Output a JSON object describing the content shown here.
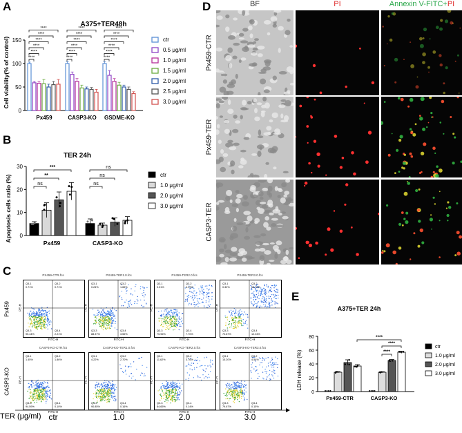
{
  "panel_a": {
    "letter": "A",
    "title": "A375+TER48h",
    "ylabel": "Cell viability(% of control)",
    "yticks": [
      "0",
      "50",
      "100",
      "150"
    ],
    "groups": [
      "Px459",
      "CASP3-KO",
      "GSDME-KO"
    ],
    "legend": [
      "ctr",
      "0.5 μg/ml",
      "1.0 μg/ml",
      "1.5 μg/ml",
      "2.0 μg/ml",
      "2.5 μg/ml",
      "3.0 μg/ml"
    ],
    "sig": "****",
    "colors": [
      "#5b8fd6",
      "#8e44c6",
      "#b5309a",
      "#6aab3f",
      "#2e5aa8",
      "#555555",
      "#d2524f"
    ]
  },
  "panel_b": {
    "letter": "B",
    "title": "TER 24h",
    "ylabel": "Apoptosis cells ratio (%)",
    "yticks": [
      "0",
      "10",
      "20",
      "30"
    ],
    "groups": [
      "Px459",
      "CASP3-KO"
    ],
    "legend": [
      "ctr",
      "1.0 μg/ml",
      "2.0 μg/ml",
      "3.0 μg/ml"
    ],
    "sig_px459": [
      "ns",
      "**",
      "***"
    ],
    "sig_casp3": [
      "ns",
      "ns",
      "ns"
    ]
  },
  "panel_c": {
    "letter": "C",
    "row_labels": [
      "Px459",
      "CASP3-KO"
    ],
    "plot_titles": [
      [
        "PX459-CTR.fcs",
        "PX459-TER1.0.fcs",
        "PX459-TER2.0.fcs",
        "PX459-TER3.0.fcs"
      ],
      [
        "CASP3-KO-CTR.fcs",
        "CASP3-KO-TER1.0.fcs",
        "CASP3-KO-TER2.0.fcs",
        "CASP3-KO-TER3.0.fcs"
      ]
    ],
    "q2": [
      [
        "0.71%",
        "1.65%",
        "4.19%",
        "16.76%"
      ],
      [
        "1.86%",
        "2.70%",
        "3.76%",
        "4.54%"
      ]
    ],
    "q1": [
      [
        "0.71%",
        "0.24%",
        "0.31%",
        "0.32%"
      ],
      [
        "1.45%",
        "4.22%",
        "11.62%",
        "15.20%"
      ]
    ],
    "q3": [
      [
        "95.44%",
        "88.37%",
        "75.96%",
        "70.87%"
      ],
      [
        "94.59%",
        "90.85%",
        "84.65%",
        "79.67%"
      ]
    ],
    "q4": [
      [
        "2.21%",
        "3.55%",
        "7.70%",
        "12.04%"
      ],
      [
        "0.10%",
        "0.16%",
        "0.14%",
        "0.15%"
      ]
    ],
    "xaxis": "FITC-H",
    "yaxis": "PE-H",
    "ter_label": "TER (μg/ml)",
    "ter_values": [
      "ctr",
      "1.0",
      "2.0",
      "3.0"
    ]
  },
  "panel_d": {
    "letter": "D",
    "col_headers": [
      "BF",
      "PI",
      "Annexin V-FITC+",
      "PI"
    ],
    "row_labels": [
      "Px459-CTR",
      "Px459-TER",
      "CASP3-TER"
    ]
  },
  "panel_e": {
    "letter": "E",
    "title": "A375+TER 24h",
    "ylabel": "LDH release (%)",
    "yticks": [
      "0",
      "20",
      "40",
      "60",
      "80"
    ],
    "groups": [
      "Px459-CTR",
      "CASP3-KO"
    ],
    "legend": [
      "ctr",
      "1.0 μg/ml",
      "2.0 μg/ml",
      "3.0 μg/ml"
    ],
    "sig": "****"
  },
  "chart_data": [
    {
      "type": "bar",
      "title": "A375+TER48h",
      "ylabel": "Cell viability(% of control)",
      "ylim": [
        0,
        150
      ],
      "categories": [
        "Px459",
        "CASP3-KO",
        "GSDME-KO"
      ],
      "series": [
        {
          "name": "ctr",
          "values": [
            100,
            100,
            100
          ],
          "err": [
            3,
            4,
            4
          ]
        },
        {
          "name": "0.5 μg/ml",
          "values": [
            59,
            77,
            75
          ],
          "err": [
            3,
            5,
            10
          ]
        },
        {
          "name": "1.0 μg/ml",
          "values": [
            58,
            62,
            62
          ],
          "err": [
            4,
            6,
            6
          ]
        },
        {
          "name": "1.5 μg/ml",
          "values": [
            57,
            48,
            54
          ],
          "err": [
            9,
            6,
            6
          ]
        },
        {
          "name": "2.0 μg/ml",
          "values": [
            50,
            46,
            50
          ],
          "err": [
            6,
            4,
            4
          ]
        },
        {
          "name": "2.5 μg/ml",
          "values": [
            55,
            45,
            45
          ],
          "err": [
            7,
            4,
            5
          ]
        },
        {
          "name": "3.0 μg/ml",
          "values": [
            56,
            39,
            36
          ],
          "err": [
            10,
            6,
            4
          ]
        }
      ]
    },
    {
      "type": "bar",
      "title": "TER 24h",
      "ylabel": "Apoptosis cells ratio (%)",
      "ylim": [
        0,
        30
      ],
      "categories": [
        "Px459",
        "CASP3-KO"
      ],
      "series": [
        {
          "name": "ctr",
          "values": [
            5.2,
            5.2
          ],
          "err": [
            0.8,
            2.0
          ]
        },
        {
          "name": "1.0 μg/ml",
          "values": [
            11.0,
            4.5
          ],
          "err": [
            3.2,
            0.9
          ]
        },
        {
          "name": "2.0 μg/ml",
          "values": [
            15.5,
            5.8
          ],
          "err": [
            3.4,
            1.8
          ]
        },
        {
          "name": "3.0 μg/ml",
          "values": [
            19.2,
            6.6
          ],
          "err": [
            3.8,
            1.6
          ]
        }
      ]
    },
    {
      "type": "bar",
      "title": "A375+TER 24h",
      "ylabel": "LDH release (%)",
      "ylim": [
        0,
        80
      ],
      "categories": [
        "Px459-CTR",
        "CASP3-KO"
      ],
      "series": [
        {
          "name": "ctr",
          "values": [
            0,
            0
          ],
          "err": [
            0,
            0
          ]
        },
        {
          "name": "1.0 μg/ml",
          "values": [
            28,
            28
          ],
          "err": [
            1,
            0.8
          ]
        },
        {
          "name": "2.0 μg/ml",
          "values": [
            42,
            45
          ],
          "err": [
            4,
            1.5
          ]
        },
        {
          "name": "3.0 μg/ml",
          "values": [
            37,
            57
          ],
          "err": [
            2,
            1.5
          ]
        }
      ]
    }
  ]
}
